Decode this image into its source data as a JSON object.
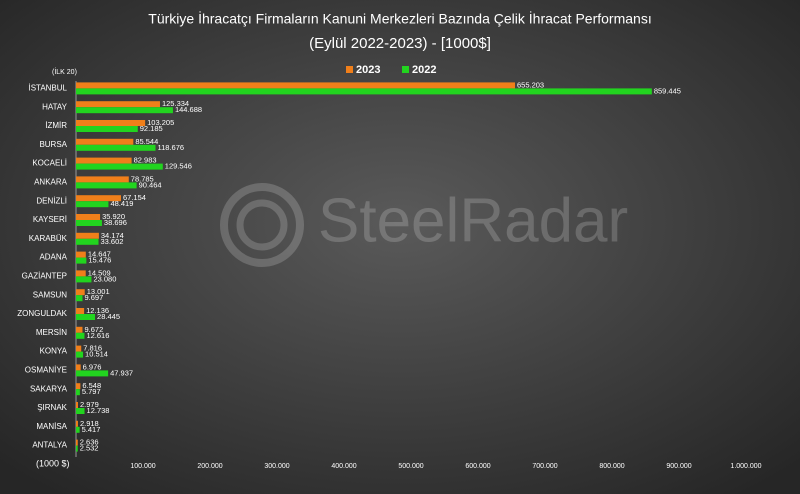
{
  "chart_data": {
    "type": "hbar",
    "title": "Türkiye İhracatçı Firmaların Kanuni Merkezleri Bazında Çelik İhracat Performansı",
    "subtitle": "(Eylül 2022-2023) - [1000$]",
    "annotation": "(İLK 20)",
    "x_label": "(1000 $)",
    "watermark": "SteelRadar",
    "categories": [
      "İSTANBUL",
      "HATAY",
      "İZMİR",
      "BURSA",
      "KOCAELİ",
      "ANKARA",
      "DENİZLİ",
      "KAYSERİ",
      "KARABÜK",
      "ADANA",
      "GAZİANTEP",
      "SAMSUN",
      "ZONGULDAK",
      "MERSİN",
      "KONYA",
      "OSMANİYE",
      "SAKARYA",
      "ŞIRNAK",
      "MANİSA",
      "ANTALYA"
    ],
    "series": [
      {
        "name": "2023",
        "color": "#f07f1a",
        "values": [
          655203,
          125334,
          103205,
          85544,
          82983,
          78785,
          67154,
          35920,
          34174,
          14647,
          14509,
          13001,
          12136,
          9672,
          7816,
          6976,
          6548,
          2979,
          2918,
          2636
        ],
        "value_labels": [
          "655.203",
          "125.334",
          "103.205",
          "85.544",
          "82.983",
          "78.785",
          "67.154",
          "35.920",
          "34.174",
          "14.647",
          "14.509",
          "13.001",
          "12.136",
          "9.672",
          "7.816",
          "6.976",
          "6.548",
          "2.979",
          "2.918",
          "2.636"
        ]
      },
      {
        "name": "2022",
        "color": "#22d41f",
        "values": [
          859445,
          144688,
          92185,
          118676,
          129546,
          90464,
          48419,
          38696,
          33602,
          15476,
          23080,
          9697,
          28445,
          12616,
          10514,
          47937,
          5797,
          12738,
          5417,
          2532
        ],
        "value_labels": [
          "859.445",
          "144.688",
          "92.185",
          "118.676",
          "129.546",
          "90.464",
          "48.419",
          "38.696",
          "33.602",
          "15.476",
          "23.080",
          "9.697",
          "28.445",
          "12.616",
          "10.514",
          "47.937",
          "5.797",
          "12.738",
          "5.417",
          "2.532"
        ]
      }
    ],
    "xlim": [
      0,
      1000000
    ],
    "xticks": [
      {
        "value": 100000,
        "label": "100.000"
      },
      {
        "value": 200000,
        "label": "200.000"
      },
      {
        "value": 300000,
        "label": "300.000"
      },
      {
        "value": 400000,
        "label": "400.000"
      },
      {
        "value": 500000,
        "label": "500.000"
      },
      {
        "value": 600000,
        "label": "600.000"
      },
      {
        "value": 700000,
        "label": "700.000"
      },
      {
        "value": 800000,
        "label": "800.000"
      },
      {
        "value": 900000,
        "label": "900.000"
      },
      {
        "value": 1000000,
        "label": "1.000.000"
      }
    ],
    "grid": false,
    "legend": "top"
  }
}
